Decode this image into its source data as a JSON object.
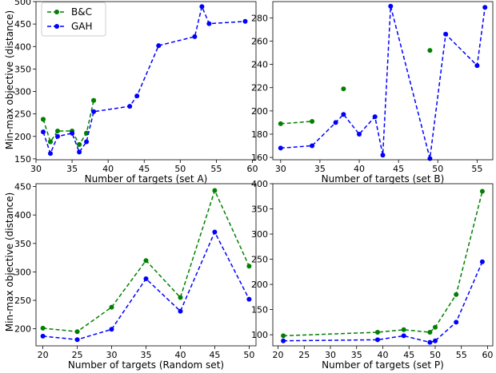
{
  "ylabel": "Min-max objective (distance)",
  "legend": {
    "placement": "upper-left",
    "entries": [
      "B&C",
      "GAH"
    ]
  },
  "colors": {
    "bc": "#008000",
    "gah": "#0000ff"
  },
  "chart_data": [
    {
      "type": "line",
      "xlabel": "Number of targets (set A)",
      "ylabel": "Min-max objective (distance)",
      "xlim": [
        30,
        60.5
      ],
      "ylim": [
        148,
        500
      ],
      "xticks": [
        30,
        35,
        40,
        45,
        50,
        55,
        60
      ],
      "yticks": [
        150,
        200,
        250,
        300,
        350,
        400,
        450,
        500
      ],
      "legend": "upper-left",
      "series": [
        {
          "name": "B&C",
          "x": [
            31,
            31,
            32,
            32,
            33,
            35,
            36,
            36,
            37,
            37,
            38,
            38
          ],
          "y": [
            238,
            238,
            188,
            188,
            212,
            212,
            182,
            182,
            207,
            207,
            280,
            280
          ]
        },
        {
          "name": "GAH",
          "x": [
            31,
            32,
            33,
            35,
            36,
            37,
            38,
            43,
            44,
            47,
            52,
            53,
            54,
            59
          ],
          "y": [
            210,
            162,
            200,
            207,
            165,
            188,
            255,
            267,
            290,
            402,
            422,
            489,
            451,
            456
          ]
        }
      ]
    },
    {
      "type": "line",
      "xlabel": "Number of targets (set B)",
      "ylabel": "",
      "xlim": [
        29,
        57
      ],
      "ylim": [
        158,
        294
      ],
      "xticks": [
        30,
        35,
        40,
        45,
        50,
        55
      ],
      "yticks": [
        160,
        180,
        200,
        220,
        240,
        260,
        280
      ],
      "series": [
        {
          "name": "B&C",
          "x": [
            30,
            34,
            38,
            49
          ],
          "y": [
            189,
            191,
            219,
            252
          ],
          "segments": [
            [
              0,
              1
            ]
          ]
        },
        {
          "name": "GAH",
          "x": [
            30,
            34,
            37,
            38,
            40,
            42,
            43,
            44,
            49,
            51,
            55,
            56
          ],
          "y": [
            168,
            170,
            190,
            197,
            180,
            195,
            162,
            290,
            159,
            266,
            239,
            289
          ]
        }
      ]
    },
    {
      "type": "line",
      "xlabel": "Number of targets (Random set)",
      "ylabel": "Min-max objective (distance)",
      "xlim": [
        19,
        51
      ],
      "ylim": [
        170,
        455
      ],
      "xticks": [
        20,
        25,
        30,
        35,
        40,
        45,
        50
      ],
      "yticks": [
        200,
        250,
        300,
        350,
        400,
        450
      ],
      "series": [
        {
          "name": "B&C",
          "x": [
            20,
            25,
            30,
            35,
            40,
            45,
            50
          ],
          "y": [
            201,
            195,
            238,
            320,
            255,
            443,
            310
          ]
        },
        {
          "name": "GAH",
          "x": [
            20,
            25,
            30,
            35,
            40,
            45,
            50
          ],
          "y": [
            187,
            181,
            199,
            288,
            231,
            370,
            252
          ]
        }
      ]
    },
    {
      "type": "line",
      "xlabel": "Number of targets (set P)",
      "ylabel": "",
      "xlim": [
        19,
        61
      ],
      "ylim": [
        78,
        400
      ],
      "xticks": [
        20,
        25,
        30,
        35,
        40,
        45,
        50,
        55,
        60
      ],
      "yticks": [
        100,
        150,
        200,
        250,
        300,
        350,
        400
      ],
      "series": [
        {
          "name": "B&C",
          "x": [
            21,
            39,
            44,
            49,
            50,
            54,
            59
          ],
          "y": [
            98,
            105,
            110,
            105,
            115,
            180,
            385
          ]
        },
        {
          "name": "GAH",
          "x": [
            21,
            39,
            44,
            49,
            50,
            54,
            59
          ],
          "y": [
            88,
            90,
            98,
            85,
            88,
            125,
            245
          ]
        }
      ]
    }
  ]
}
